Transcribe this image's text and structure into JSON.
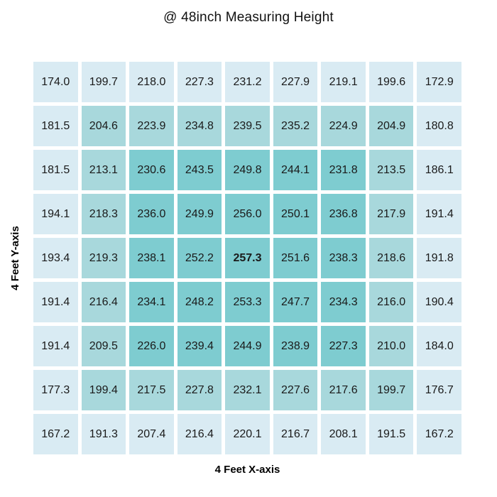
{
  "chart_data": {
    "type": "heatmap",
    "title": "@ 48inch Measuring Height",
    "xlabel": "4 Feet X-axis",
    "ylabel": "4 Feet Y-axis",
    "rows": 9,
    "cols": 9,
    "values": [
      [
        174.0,
        199.7,
        218.0,
        227.3,
        231.2,
        227.9,
        219.1,
        199.6,
        172.9
      ],
      [
        181.5,
        204.6,
        223.9,
        234.8,
        239.5,
        235.2,
        224.9,
        204.9,
        180.8
      ],
      [
        181.5,
        213.1,
        230.6,
        243.5,
        249.8,
        244.1,
        231.8,
        213.5,
        186.1
      ],
      [
        194.1,
        218.3,
        236.0,
        249.9,
        256.0,
        250.1,
        236.8,
        217.9,
        191.4
      ],
      [
        193.4,
        219.3,
        238.1,
        252.2,
        257.3,
        251.6,
        238.3,
        218.6,
        191.8
      ],
      [
        191.4,
        216.4,
        234.1,
        248.2,
        253.3,
        247.7,
        234.3,
        216.0,
        190.4
      ],
      [
        191.4,
        209.5,
        226.0,
        239.4,
        244.9,
        238.9,
        227.3,
        210.0,
        184.0
      ],
      [
        177.3,
        199.4,
        217.5,
        227.8,
        232.1,
        227.6,
        217.6,
        199.7,
        176.7
      ],
      [
        167.2,
        191.3,
        207.4,
        216.4,
        220.1,
        216.7,
        208.1,
        191.5,
        167.2
      ]
    ],
    "value_decimals": 1,
    "emphasized_cell": {
      "row_index": 4,
      "col_index": 4,
      "value": 257.3,
      "style": "bold"
    },
    "cell_colors_by_ring": [
      "#d9ebf3",
      "#a8d8dc",
      "#7eccd0"
    ],
    "cell_text_color": "#1a1a1a",
    "background_color": "#ffffff",
    "legend": "none",
    "grid": "white gaps between cells"
  }
}
